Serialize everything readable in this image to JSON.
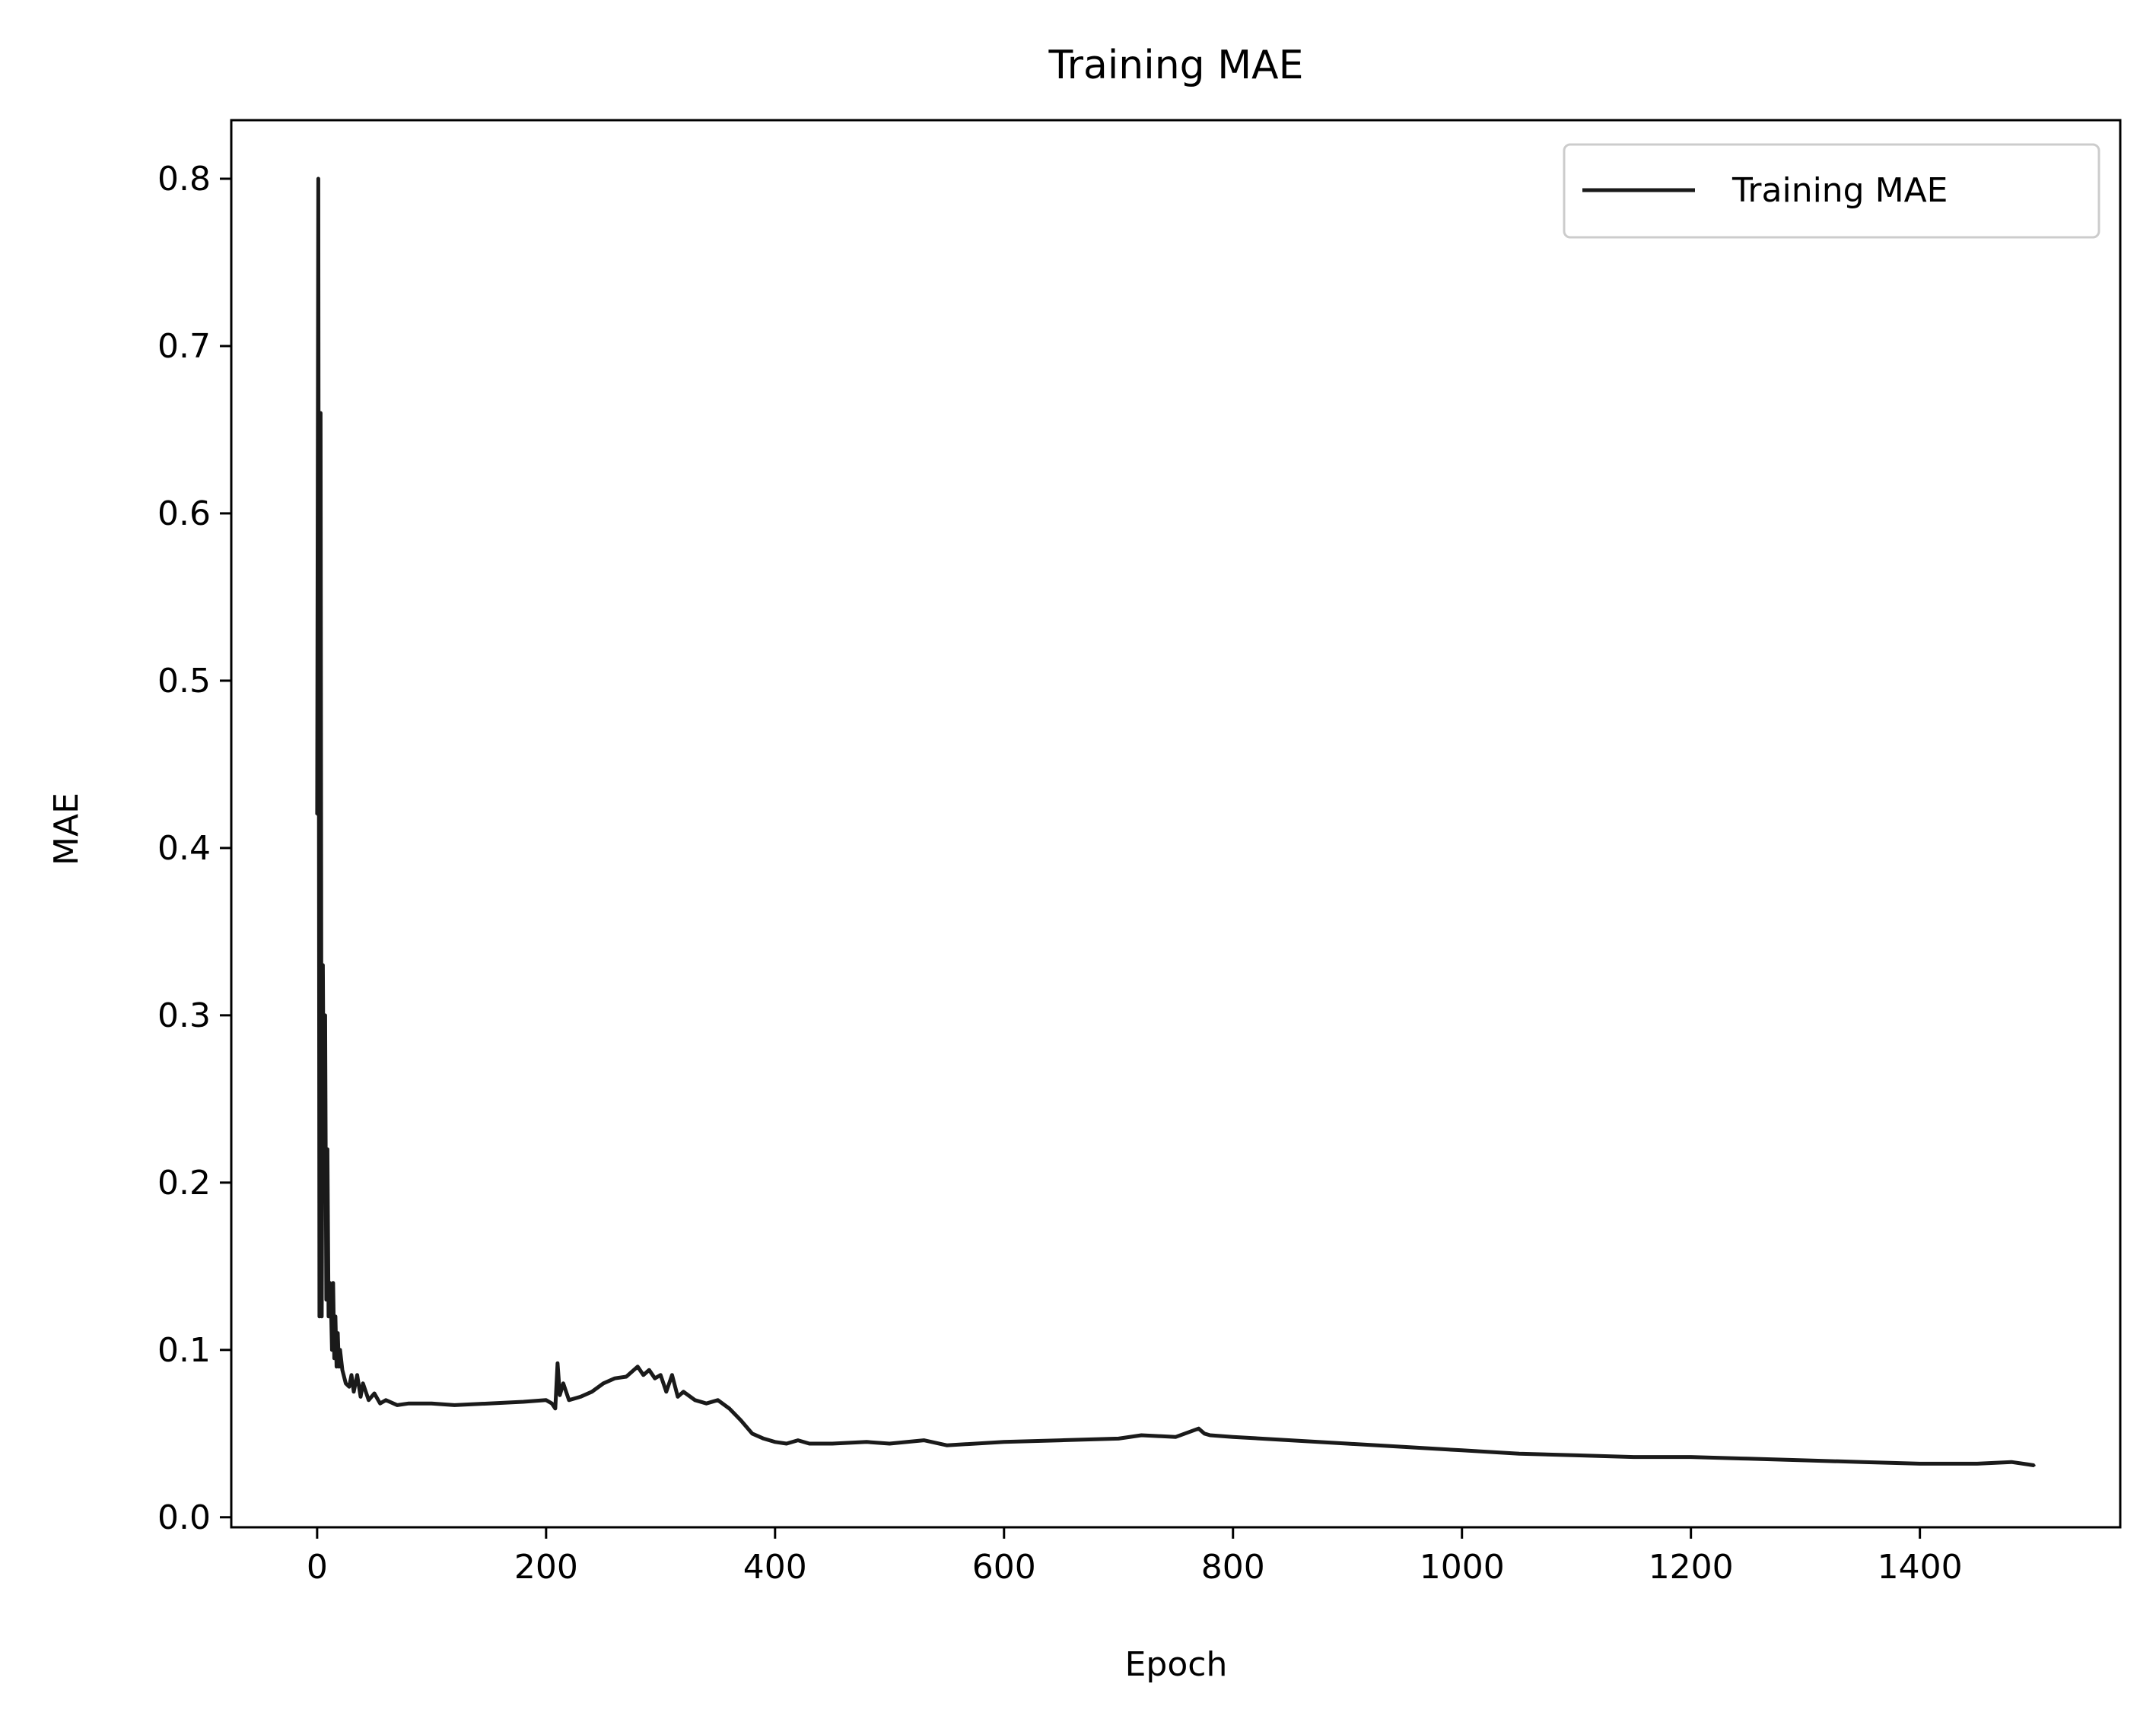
{
  "chart_data": {
    "type": "line",
    "title": "Training MAE",
    "xlabel": "Epoch",
    "ylabel": "MAE",
    "xlim": [
      -75,
      1575
    ],
    "ylim": [
      -0.006,
      0.835
    ],
    "xticks": [
      0,
      200,
      400,
      600,
      800,
      1000,
      1200,
      1400
    ],
    "xtick_labels": [
      "0",
      "200",
      "400",
      "600",
      "800",
      "1000",
      "1200",
      "1400"
    ],
    "yticks": [
      0.0,
      0.1,
      0.2,
      0.3,
      0.4,
      0.5,
      0.6,
      0.7,
      0.8
    ],
    "ytick_labels": [
      "0.0",
      "0.1",
      "0.2",
      "0.3",
      "0.4",
      "0.5",
      "0.6",
      "0.7",
      "0.8"
    ],
    "grid": false,
    "legend_position": "top-right",
    "series": [
      {
        "name": "Training MAE",
        "color": "#1a1a1a",
        "x": [
          0,
          1,
          2,
          3,
          4,
          5,
          6,
          7,
          8,
          9,
          10,
          11,
          12,
          13,
          14,
          15,
          16,
          17,
          18,
          19,
          20,
          22,
          25,
          28,
          30,
          32,
          35,
          38,
          40,
          45,
          50,
          55,
          60,
          70,
          80,
          100,
          120,
          150,
          180,
          200,
          205,
          208,
          210,
          212,
          215,
          220,
          230,
          240,
          250,
          260,
          270,
          280,
          285,
          290,
          295,
          300,
          305,
          310,
          315,
          320,
          330,
          340,
          350,
          360,
          370,
          380,
          390,
          400,
          410,
          420,
          430,
          450,
          480,
          500,
          530,
          550,
          600,
          650,
          700,
          720,
          750,
          770,
          775,
          780,
          800,
          850,
          900,
          950,
          1000,
          1050,
          1100,
          1150,
          1200,
          1250,
          1300,
          1350,
          1400,
          1450,
          1480,
          1500
        ],
        "values": [
          0.42,
          0.8,
          0.12,
          0.66,
          0.12,
          0.33,
          0.2,
          0.3,
          0.13,
          0.22,
          0.12,
          0.14,
          0.13,
          0.1,
          0.14,
          0.095,
          0.12,
          0.09,
          0.11,
          0.09,
          0.1,
          0.088,
          0.08,
          0.078,
          0.085,
          0.075,
          0.085,
          0.072,
          0.08,
          0.07,
          0.074,
          0.068,
          0.07,
          0.067,
          0.068,
          0.068,
          0.067,
          0.068,
          0.069,
          0.07,
          0.068,
          0.065,
          0.092,
          0.073,
          0.08,
          0.07,
          0.072,
          0.075,
          0.08,
          0.083,
          0.084,
          0.09,
          0.085,
          0.088,
          0.083,
          0.085,
          0.075,
          0.085,
          0.072,
          0.075,
          0.07,
          0.068,
          0.07,
          0.065,
          0.058,
          0.05,
          0.047,
          0.045,
          0.044,
          0.046,
          0.044,
          0.044,
          0.045,
          0.044,
          0.046,
          0.043,
          0.045,
          0.046,
          0.047,
          0.049,
          0.048,
          0.053,
          0.05,
          0.049,
          0.048,
          0.046,
          0.044,
          0.042,
          0.04,
          0.038,
          0.037,
          0.036,
          0.036,
          0.035,
          0.034,
          0.033,
          0.032,
          0.032,
          0.033,
          0.031
        ]
      }
    ]
  }
}
